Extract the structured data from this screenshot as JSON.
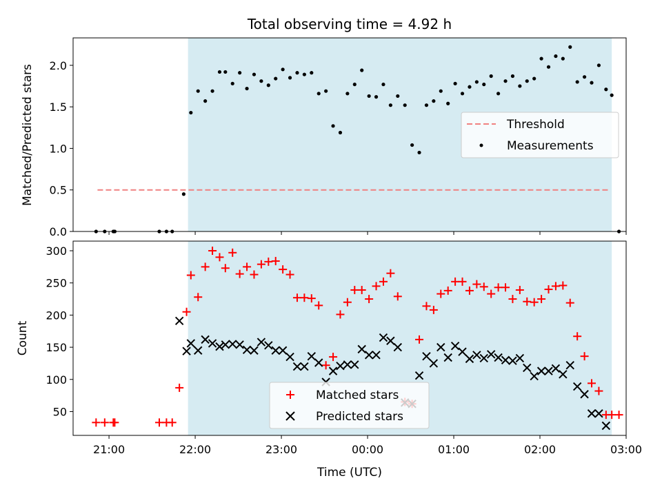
{
  "chart_data": [
    {
      "type": "scatter",
      "title": "Total observing time = 4.92 h",
      "xlabel": "",
      "ylabel": "Matched/Predicted stars",
      "xlim": [
        -205,
        180
      ],
      "ylim": [
        0,
        2.33
      ],
      "yticks": [
        {
          "v": 0.0,
          "label": "0.0"
        },
        {
          "v": 0.5,
          "label": "0.5"
        },
        {
          "v": 1.0,
          "label": "1.0"
        },
        {
          "v": 1.5,
          "label": "1.5"
        },
        {
          "v": 2.0,
          "label": "2.0"
        }
      ],
      "shaded_interval": [
        -125,
        170
      ],
      "threshold": {
        "name": "Threshold",
        "value": 0.5,
        "x_from": -188,
        "x_to": 168,
        "color": "#f08080"
      },
      "series": [
        {
          "name": "Measurements",
          "marker": "dot",
          "color": "#000000",
          "x": [
            -189,
            -183,
            -177,
            -176,
            -145,
            -140,
            -136,
            -128,
            -123,
            -118,
            -113,
            -108,
            -103,
            -99,
            -94,
            -89,
            -84,
            -79,
            -74,
            -69,
            -64,
            -59,
            -54,
            -49,
            -44,
            -39,
            -34,
            -29,
            -24,
            -19,
            -14,
            -9,
            -4,
            1,
            6,
            11,
            16,
            21,
            26,
            31,
            36,
            41,
            46,
            51,
            56,
            61,
            66,
            71,
            76,
            81,
            86,
            91,
            96,
            101,
            106,
            111,
            116,
            121,
            126,
            131,
            136,
            141,
            146,
            151,
            156,
            161,
            166,
            170,
            175
          ],
          "y": [
            0,
            0,
            0,
            0,
            0,
            0,
            0,
            0.45,
            1.43,
            1.69,
            1.57,
            1.69,
            1.92,
            1.92,
            1.78,
            1.91,
            1.72,
            1.89,
            1.81,
            1.76,
            1.84,
            1.95,
            1.85,
            1.91,
            1.89,
            1.91,
            1.66,
            1.69,
            1.27,
            1.19,
            1.66,
            1.77,
            1.94,
            1.63,
            1.62,
            1.77,
            1.52,
            1.63,
            1.52,
            1.04,
            0.95,
            1.52,
            1.57,
            1.69,
            1.54,
            1.78,
            1.66,
            1.74,
            1.8,
            1.77,
            1.87,
            1.66,
            1.81,
            1.87,
            1.75,
            1.81,
            1.84,
            2.08,
            1.98,
            2.11,
            2.08,
            2.22,
            1.8,
            1.86,
            1.79,
            2.0,
            1.71,
            1.64,
            0
          ]
        }
      ],
      "legend": {
        "position": "center-right",
        "entries": [
          "Threshold",
          "Measurements"
        ]
      }
    },
    {
      "type": "scatter",
      "title": "",
      "xlabel": "Time (UTC)",
      "ylabel": "Count",
      "xlim": [
        -205,
        180
      ],
      "ylim": [
        13,
        315
      ],
      "yticks": [
        {
          "v": 50,
          "label": "50"
        },
        {
          "v": 100,
          "label": "100"
        },
        {
          "v": 150,
          "label": "150"
        },
        {
          "v": 200,
          "label": "200"
        },
        {
          "v": 250,
          "label": "250"
        },
        {
          "v": 300,
          "label": "300"
        }
      ],
      "xticks": [
        {
          "v": -180,
          "label": "21:00"
        },
        {
          "v": -120,
          "label": "22:00"
        },
        {
          "v": -60,
          "label": "23:00"
        },
        {
          "v": 0,
          "label": "00:00"
        },
        {
          "v": 60,
          "label": "01:00"
        },
        {
          "v": 120,
          "label": "02:00"
        },
        {
          "v": 180,
          "label": "03:00"
        }
      ],
      "shaded_interval": [
        -125,
        170
      ],
      "series": [
        {
          "name": "Matched stars",
          "marker": "plus",
          "color": "#ff0000",
          "x": [
            -189,
            -183,
            -177,
            -176,
            -145,
            -140,
            -136,
            -131,
            -126,
            -123,
            -118,
            -113,
            -108,
            -103,
            -99,
            -94,
            -89,
            -84,
            -79,
            -74,
            -69,
            -64,
            -59,
            -54,
            -49,
            -44,
            -39,
            -34,
            -29,
            -24,
            -19,
            -14,
            -9,
            -4,
            1,
            6,
            11,
            16,
            21,
            26,
            31,
            36,
            41,
            46,
            51,
            56,
            61,
            66,
            71,
            76,
            81,
            86,
            91,
            96,
            101,
            106,
            111,
            116,
            121,
            126,
            131,
            136,
            141,
            146,
            151,
            156,
            161,
            166,
            170,
            175
          ],
          "y": [
            33,
            33,
            33,
            33,
            33,
            33,
            33,
            87,
            205,
            262,
            228,
            275,
            300,
            290,
            273,
            297,
            264,
            275,
            263,
            279,
            283,
            284,
            271,
            263,
            227,
            227,
            226,
            215,
            122,
            135,
            201,
            220,
            239,
            239,
            225,
            245,
            252,
            265,
            229,
            65,
            62,
            162,
            214,
            208,
            233,
            238,
            252,
            252,
            238,
            248,
            244,
            233,
            243,
            243,
            225,
            239,
            221,
            220,
            225,
            240,
            245,
            246,
            219,
            167,
            136,
            94,
            82,
            45,
            45,
            45
          ]
        },
        {
          "name": "Predicted stars",
          "marker": "x",
          "color": "#000000",
          "x": [
            -131,
            -126,
            -123,
            -118,
            -113,
            -108,
            -103,
            -99,
            -94,
            -89,
            -84,
            -79,
            -74,
            -69,
            -64,
            -59,
            -54,
            -49,
            -44,
            -39,
            -34,
            -29,
            -24,
            -19,
            -14,
            -9,
            -4,
            1,
            6,
            11,
            16,
            21,
            26,
            31,
            36,
            41,
            46,
            51,
            56,
            61,
            66,
            71,
            76,
            81,
            86,
            91,
            96,
            101,
            106,
            111,
            116,
            121,
            126,
            131,
            136,
            141,
            146,
            151,
            156,
            161,
            166
          ],
          "y": [
            191,
            144,
            156,
            145,
            162,
            156,
            151,
            154,
            155,
            154,
            146,
            145,
            158,
            153,
            145,
            145,
            135,
            120,
            120,
            136,
            126,
            96,
            113,
            121,
            123,
            123,
            147,
            138,
            138,
            165,
            160,
            150,
            64,
            62,
            106,
            136,
            125,
            150,
            134,
            152,
            143,
            132,
            138,
            133,
            139,
            134,
            130,
            129,
            133,
            118,
            105,
            113,
            113,
            117,
            108,
            122,
            89,
            77,
            47,
            47,
            28
          ]
        }
      ],
      "legend": {
        "position": "lower-center",
        "entries": [
          "Matched stars",
          "Predicted stars"
        ]
      }
    }
  ]
}
